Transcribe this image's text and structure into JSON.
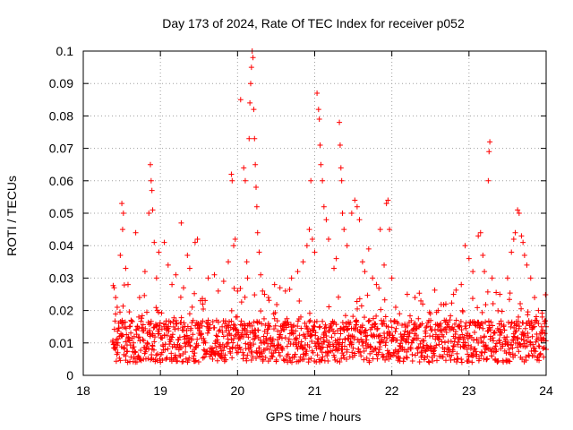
{
  "chart_data": {
    "type": "scatter",
    "title": "Day 173 of 2024, Rate Of TEC Index for receiver p052",
    "xlabel": "GPS time / hours",
    "ylabel": "ROTI / TECUs",
    "xlim": [
      18,
      24
    ],
    "ylim": [
      0,
      0.1
    ],
    "xticks": [
      "18",
      "19",
      "20",
      "21",
      "22",
      "23",
      "24"
    ],
    "yticks": [
      "0",
      "0.01",
      "0.02",
      "0.03",
      "0.04",
      "0.05",
      "0.06",
      "0.07",
      "0.08",
      "0.09",
      "0.1"
    ],
    "grid": true,
    "marker": "+",
    "color": "#ff0000",
    "series": [
      {
        "name": "ROTI",
        "points": [
          [
            18.4,
            0.027
          ],
          [
            18.42,
            0.024
          ],
          [
            18.44,
            0.021
          ],
          [
            18.45,
            0.01
          ],
          [
            18.48,
            0.037
          ],
          [
            18.5,
            0.053
          ],
          [
            18.51,
            0.045
          ],
          [
            18.52,
            0.05
          ],
          [
            18.55,
            0.033
          ],
          [
            18.58,
            0.028
          ],
          [
            18.62,
            0.017
          ],
          [
            18.68,
            0.044
          ],
          [
            18.73,
            0.024
          ],
          [
            18.8,
            0.032
          ],
          [
            18.85,
            0.05
          ],
          [
            18.87,
            0.065
          ],
          [
            18.88,
            0.06
          ],
          [
            18.89,
            0.057
          ],
          [
            18.9,
            0.051
          ],
          [
            18.92,
            0.041
          ],
          [
            18.95,
            0.03
          ],
          [
            18.98,
            0.038
          ],
          [
            19.05,
            0.041
          ],
          [
            19.1,
            0.034
          ],
          [
            19.15,
            0.028
          ],
          [
            19.2,
            0.031
          ],
          [
            19.27,
            0.047
          ],
          [
            19.3,
            0.027
          ],
          [
            19.35,
            0.037
          ],
          [
            19.38,
            0.033
          ],
          [
            19.45,
            0.041
          ],
          [
            19.48,
            0.042
          ],
          [
            19.55,
            0.022
          ],
          [
            19.62,
            0.03
          ],
          [
            19.7,
            0.031
          ],
          [
            19.75,
            0.026
          ],
          [
            19.82,
            0.029
          ],
          [
            19.88,
            0.035
          ],
          [
            19.92,
            0.062
          ],
          [
            19.93,
            0.06
          ],
          [
            19.95,
            0.04
          ],
          [
            19.97,
            0.042
          ],
          [
            20.0,
            0.026
          ],
          [
            20.04,
            0.085
          ],
          [
            20.08,
            0.064
          ],
          [
            20.1,
            0.06
          ],
          [
            20.12,
            0.035
          ],
          [
            20.13,
            0.03
          ],
          [
            20.15,
            0.073
          ],
          [
            20.16,
            0.084
          ],
          [
            20.17,
            0.09
          ],
          [
            20.18,
            0.095
          ],
          [
            20.19,
            0.1
          ],
          [
            20.2,
            0.098
          ],
          [
            20.21,
            0.082
          ],
          [
            20.22,
            0.073
          ],
          [
            20.23,
            0.065
          ],
          [
            20.24,
            0.058
          ],
          [
            20.25,
            0.052
          ],
          [
            20.26,
            0.044
          ],
          [
            20.28,
            0.038
          ],
          [
            20.3,
            0.031
          ],
          [
            20.35,
            0.025
          ],
          [
            20.4,
            0.024
          ],
          [
            20.48,
            0.028
          ],
          [
            20.55,
            0.027
          ],
          [
            20.62,
            0.026
          ],
          [
            20.7,
            0.03
          ],
          [
            20.78,
            0.032
          ],
          [
            20.85,
            0.035
          ],
          [
            20.9,
            0.04
          ],
          [
            20.93,
            0.045
          ],
          [
            20.95,
            0.06
          ],
          [
            20.97,
            0.042
          ],
          [
            21.0,
            0.038
          ],
          [
            21.03,
            0.087
          ],
          [
            21.05,
            0.082
          ],
          [
            21.06,
            0.079
          ],
          [
            21.07,
            0.071
          ],
          [
            21.08,
            0.065
          ],
          [
            21.1,
            0.06
          ],
          [
            21.12,
            0.052
          ],
          [
            21.15,
            0.048
          ],
          [
            21.18,
            0.042
          ],
          [
            21.25,
            0.033
          ],
          [
            21.28,
            0.036
          ],
          [
            21.32,
            0.078
          ],
          [
            21.33,
            0.071
          ],
          [
            21.34,
            0.064
          ],
          [
            21.35,
            0.06
          ],
          [
            21.36,
            0.05
          ],
          [
            21.38,
            0.045
          ],
          [
            21.42,
            0.04
          ],
          [
            21.48,
            0.05
          ],
          [
            21.52,
            0.054
          ],
          [
            21.55,
            0.052
          ],
          [
            21.58,
            0.048
          ],
          [
            21.62,
            0.035
          ],
          [
            21.65,
            0.032
          ],
          [
            21.7,
            0.039
          ],
          [
            21.75,
            0.03
          ],
          [
            21.8,
            0.028
          ],
          [
            21.85,
            0.045
          ],
          [
            21.9,
            0.034
          ],
          [
            21.93,
            0.053
          ],
          [
            21.95,
            0.054
          ],
          [
            21.97,
            0.045
          ],
          [
            22.0,
            0.03
          ],
          [
            22.05,
            0.021
          ],
          [
            22.1,
            0.019
          ],
          [
            22.2,
            0.025
          ],
          [
            22.3,
            0.024
          ],
          [
            22.4,
            0.022
          ],
          [
            22.5,
            0.019
          ],
          [
            22.6,
            0.02
          ],
          [
            22.7,
            0.022
          ],
          [
            22.8,
            0.025
          ],
          [
            22.9,
            0.028
          ],
          [
            22.95,
            0.04
          ],
          [
            23.0,
            0.036
          ],
          [
            23.05,
            0.032
          ],
          [
            23.12,
            0.043
          ],
          [
            23.15,
            0.044
          ],
          [
            23.18,
            0.037
          ],
          [
            23.2,
            0.032
          ],
          [
            23.25,
            0.06
          ],
          [
            23.26,
            0.069
          ],
          [
            23.27,
            0.072
          ],
          [
            23.3,
            0.03
          ],
          [
            23.4,
            0.025
          ],
          [
            23.5,
            0.03
          ],
          [
            23.55,
            0.038
          ],
          [
            23.58,
            0.042
          ],
          [
            23.6,
            0.044
          ],
          [
            23.63,
            0.051
          ],
          [
            23.65,
            0.05
          ],
          [
            23.68,
            0.043
          ],
          [
            23.7,
            0.041
          ],
          [
            23.72,
            0.037
          ],
          [
            23.75,
            0.034
          ],
          [
            23.8,
            0.03
          ],
          [
            23.85,
            0.024
          ],
          [
            23.9,
            0.02
          ],
          [
            23.95,
            0.018
          ],
          [
            23.98,
            0.016
          ],
          [
            24.0,
            0.015
          ],
          [
            18.42,
            0.008
          ],
          [
            18.5,
            0.012
          ],
          [
            18.55,
            0.006
          ],
          [
            18.6,
            0.015
          ],
          [
            18.65,
            0.01
          ],
          [
            18.72,
            0.018
          ],
          [
            18.78,
            0.005
          ],
          [
            18.83,
            0.013
          ],
          [
            18.9,
            0.009
          ],
          [
            18.96,
            0.02
          ],
          [
            19.02,
            0.007
          ],
          [
            19.08,
            0.014
          ],
          [
            19.14,
            0.011
          ],
          [
            19.2,
            0.016
          ],
          [
            19.26,
            0.006
          ],
          [
            19.32,
            0.012
          ],
          [
            19.38,
            0.019
          ],
          [
            19.44,
            0.008
          ],
          [
            19.5,
            0.013
          ],
          [
            19.56,
            0.01
          ],
          [
            19.62,
            0.017
          ],
          [
            19.68,
            0.007
          ],
          [
            19.74,
            0.012
          ],
          [
            19.8,
            0.015
          ],
          [
            19.86,
            0.009
          ],
          [
            19.92,
            0.011
          ],
          [
            19.98,
            0.018
          ],
          [
            20.04,
            0.008
          ],
          [
            20.1,
            0.013
          ],
          [
            20.16,
            0.01
          ],
          [
            20.22,
            0.014
          ],
          [
            20.28,
            0.007
          ],
          [
            20.34,
            0.012
          ],
          [
            20.4,
            0.016
          ],
          [
            20.46,
            0.009
          ],
          [
            20.52,
            0.011
          ],
          [
            20.58,
            0.015
          ],
          [
            20.64,
            0.006
          ],
          [
            20.7,
            0.013
          ],
          [
            20.76,
            0.01
          ],
          [
            20.82,
            0.018
          ],
          [
            20.88,
            0.008
          ],
          [
            20.94,
            0.012
          ],
          [
            21.0,
            0.015
          ],
          [
            21.06,
            0.009
          ],
          [
            21.12,
            0.013
          ],
          [
            21.18,
            0.007
          ],
          [
            21.24,
            0.016
          ],
          [
            21.3,
            0.011
          ],
          [
            21.36,
            0.008
          ],
          [
            21.42,
            0.014
          ],
          [
            21.48,
            0.01
          ],
          [
            21.54,
            0.017
          ],
          [
            21.6,
            0.006
          ],
          [
            21.66,
            0.012
          ],
          [
            21.72,
            0.009
          ],
          [
            21.78,
            0.015
          ],
          [
            21.84,
            0.008
          ],
          [
            21.9,
            0.013
          ],
          [
            21.96,
            0.005
          ],
          [
            22.02,
            0.011
          ],
          [
            22.08,
            0.016
          ],
          [
            22.14,
            0.008
          ],
          [
            22.2,
            0.012
          ],
          [
            22.26,
            0.01
          ],
          [
            22.32,
            0.015
          ],
          [
            22.38,
            0.007
          ],
          [
            22.44,
            0.013
          ],
          [
            22.5,
            0.009
          ],
          [
            22.56,
            0.014
          ],
          [
            22.62,
            0.011
          ],
          [
            22.68,
            0.017
          ],
          [
            22.74,
            0.008
          ],
          [
            22.8,
            0.012
          ],
          [
            22.86,
            0.015
          ],
          [
            22.92,
            0.009
          ],
          [
            22.98,
            0.013
          ],
          [
            23.04,
            0.006
          ],
          [
            23.1,
            0.011
          ],
          [
            23.16,
            0.016
          ],
          [
            23.22,
            0.008
          ],
          [
            23.28,
            0.012
          ],
          [
            23.34,
            0.005
          ],
          [
            23.4,
            0.01
          ],
          [
            23.46,
            0.014
          ],
          [
            23.52,
            0.007
          ],
          [
            23.58,
            0.012
          ],
          [
            23.64,
            0.018
          ],
          [
            23.7,
            0.009
          ],
          [
            23.76,
            0.013
          ],
          [
            23.82,
            0.006
          ],
          [
            23.88,
            0.011
          ],
          [
            23.94,
            0.015
          ],
          [
            24.0,
            0.008
          ]
        ]
      }
    ]
  }
}
